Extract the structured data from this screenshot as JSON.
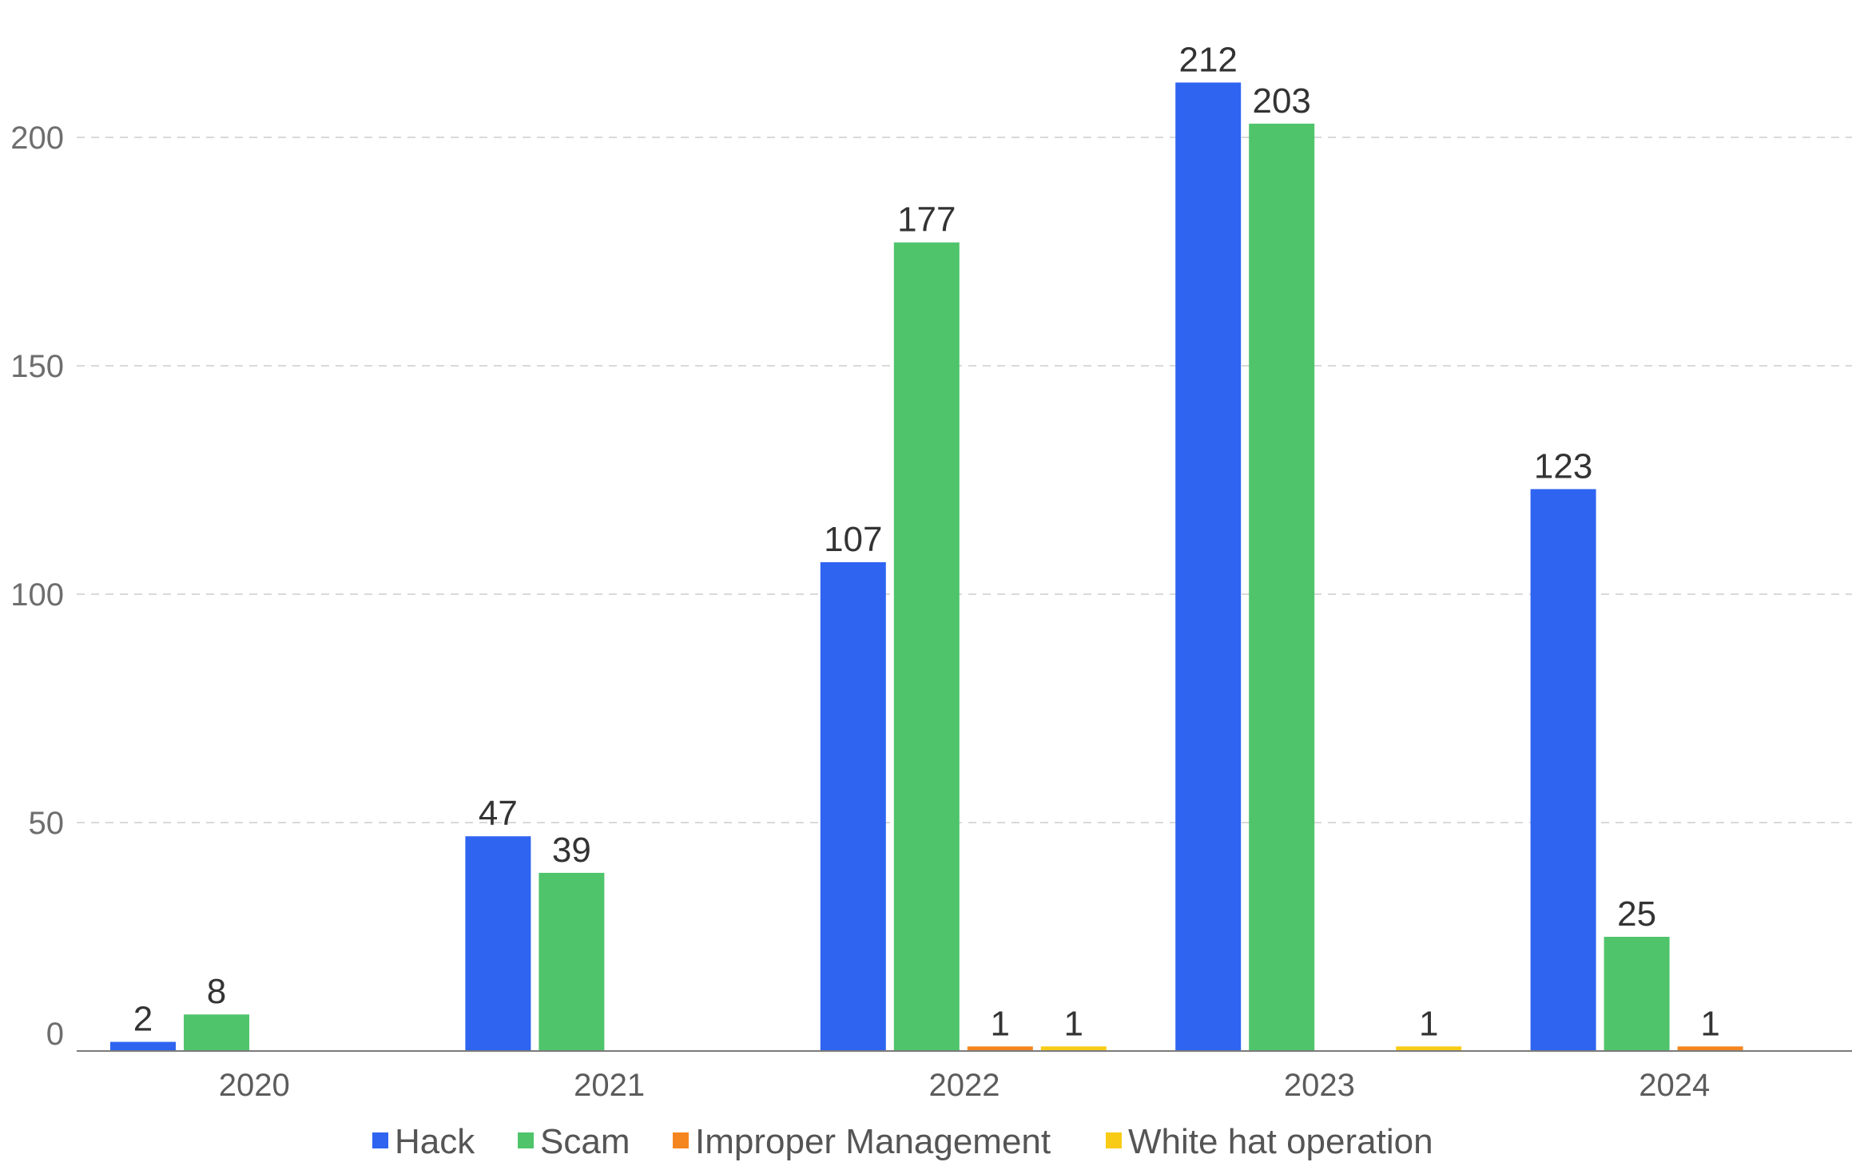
{
  "chart_data": {
    "type": "bar",
    "title": "",
    "xlabel": "",
    "ylabel": "",
    "categories": [
      "2020",
      "2021",
      "2022",
      "2023",
      "2024"
    ],
    "series": [
      {
        "name": "Hack",
        "color": "#2e64f0",
        "values": [
          2,
          47,
          107,
          212,
          123
        ]
      },
      {
        "name": "Scam",
        "color": "#4fc46b",
        "values": [
          8,
          39,
          177,
          203,
          25
        ]
      },
      {
        "name": "Improper Management",
        "color": "#f5861f",
        "values": [
          null,
          null,
          1,
          null,
          1
        ]
      },
      {
        "name": "White hat operation",
        "color": "#f8cc16",
        "values": [
          null,
          null,
          1,
          1,
          null
        ]
      }
    ],
    "ylim": [
      0,
      230
    ],
    "yticks": [
      0,
      50,
      100,
      150,
      200
    ],
    "grid": true,
    "legend": "bottom-center",
    "data_labels": true
  }
}
